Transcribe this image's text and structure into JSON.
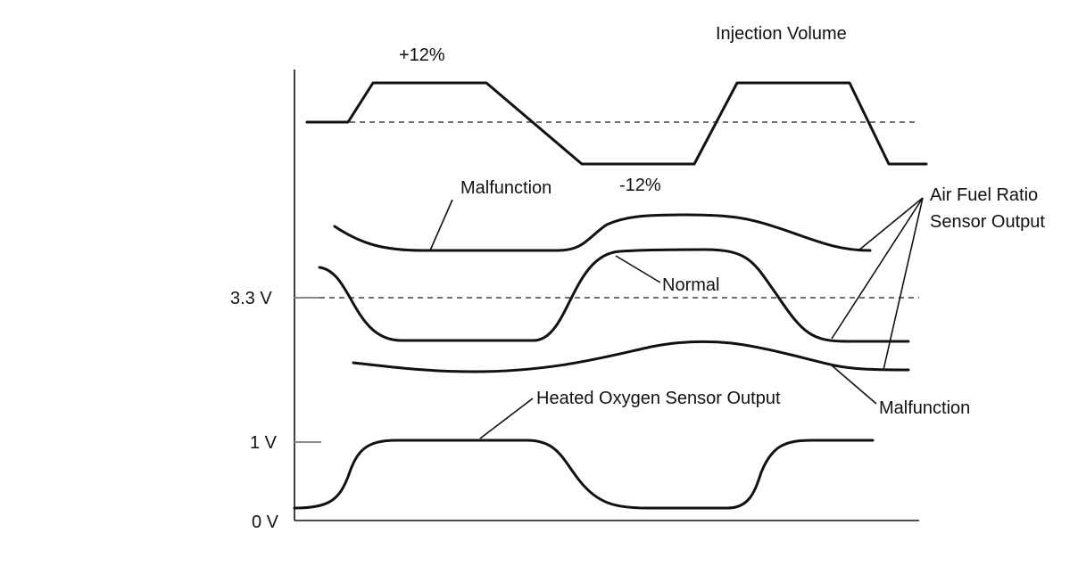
{
  "colors": {
    "line": "#111111",
    "tick": "#888888",
    "dashed": "#444444",
    "background": "#ffffff"
  },
  "labels": {
    "injection_volume": "Injection Volume",
    "plus_12": "+12%",
    "minus_12": "-12%",
    "malfunction_upper": "Malfunction",
    "air_fuel_ratio_line1": "Air Fuel Ratio",
    "air_fuel_ratio_line2": "Sensor Output",
    "normal": "Normal",
    "malfunction_lower": "Malfunction",
    "heated_oxygen": "Heated Oxygen Sensor Output"
  },
  "axis": {
    "tick_3_3v": "3.3 V",
    "tick_1v": "1 V",
    "tick_0v": "0 V"
  }
}
